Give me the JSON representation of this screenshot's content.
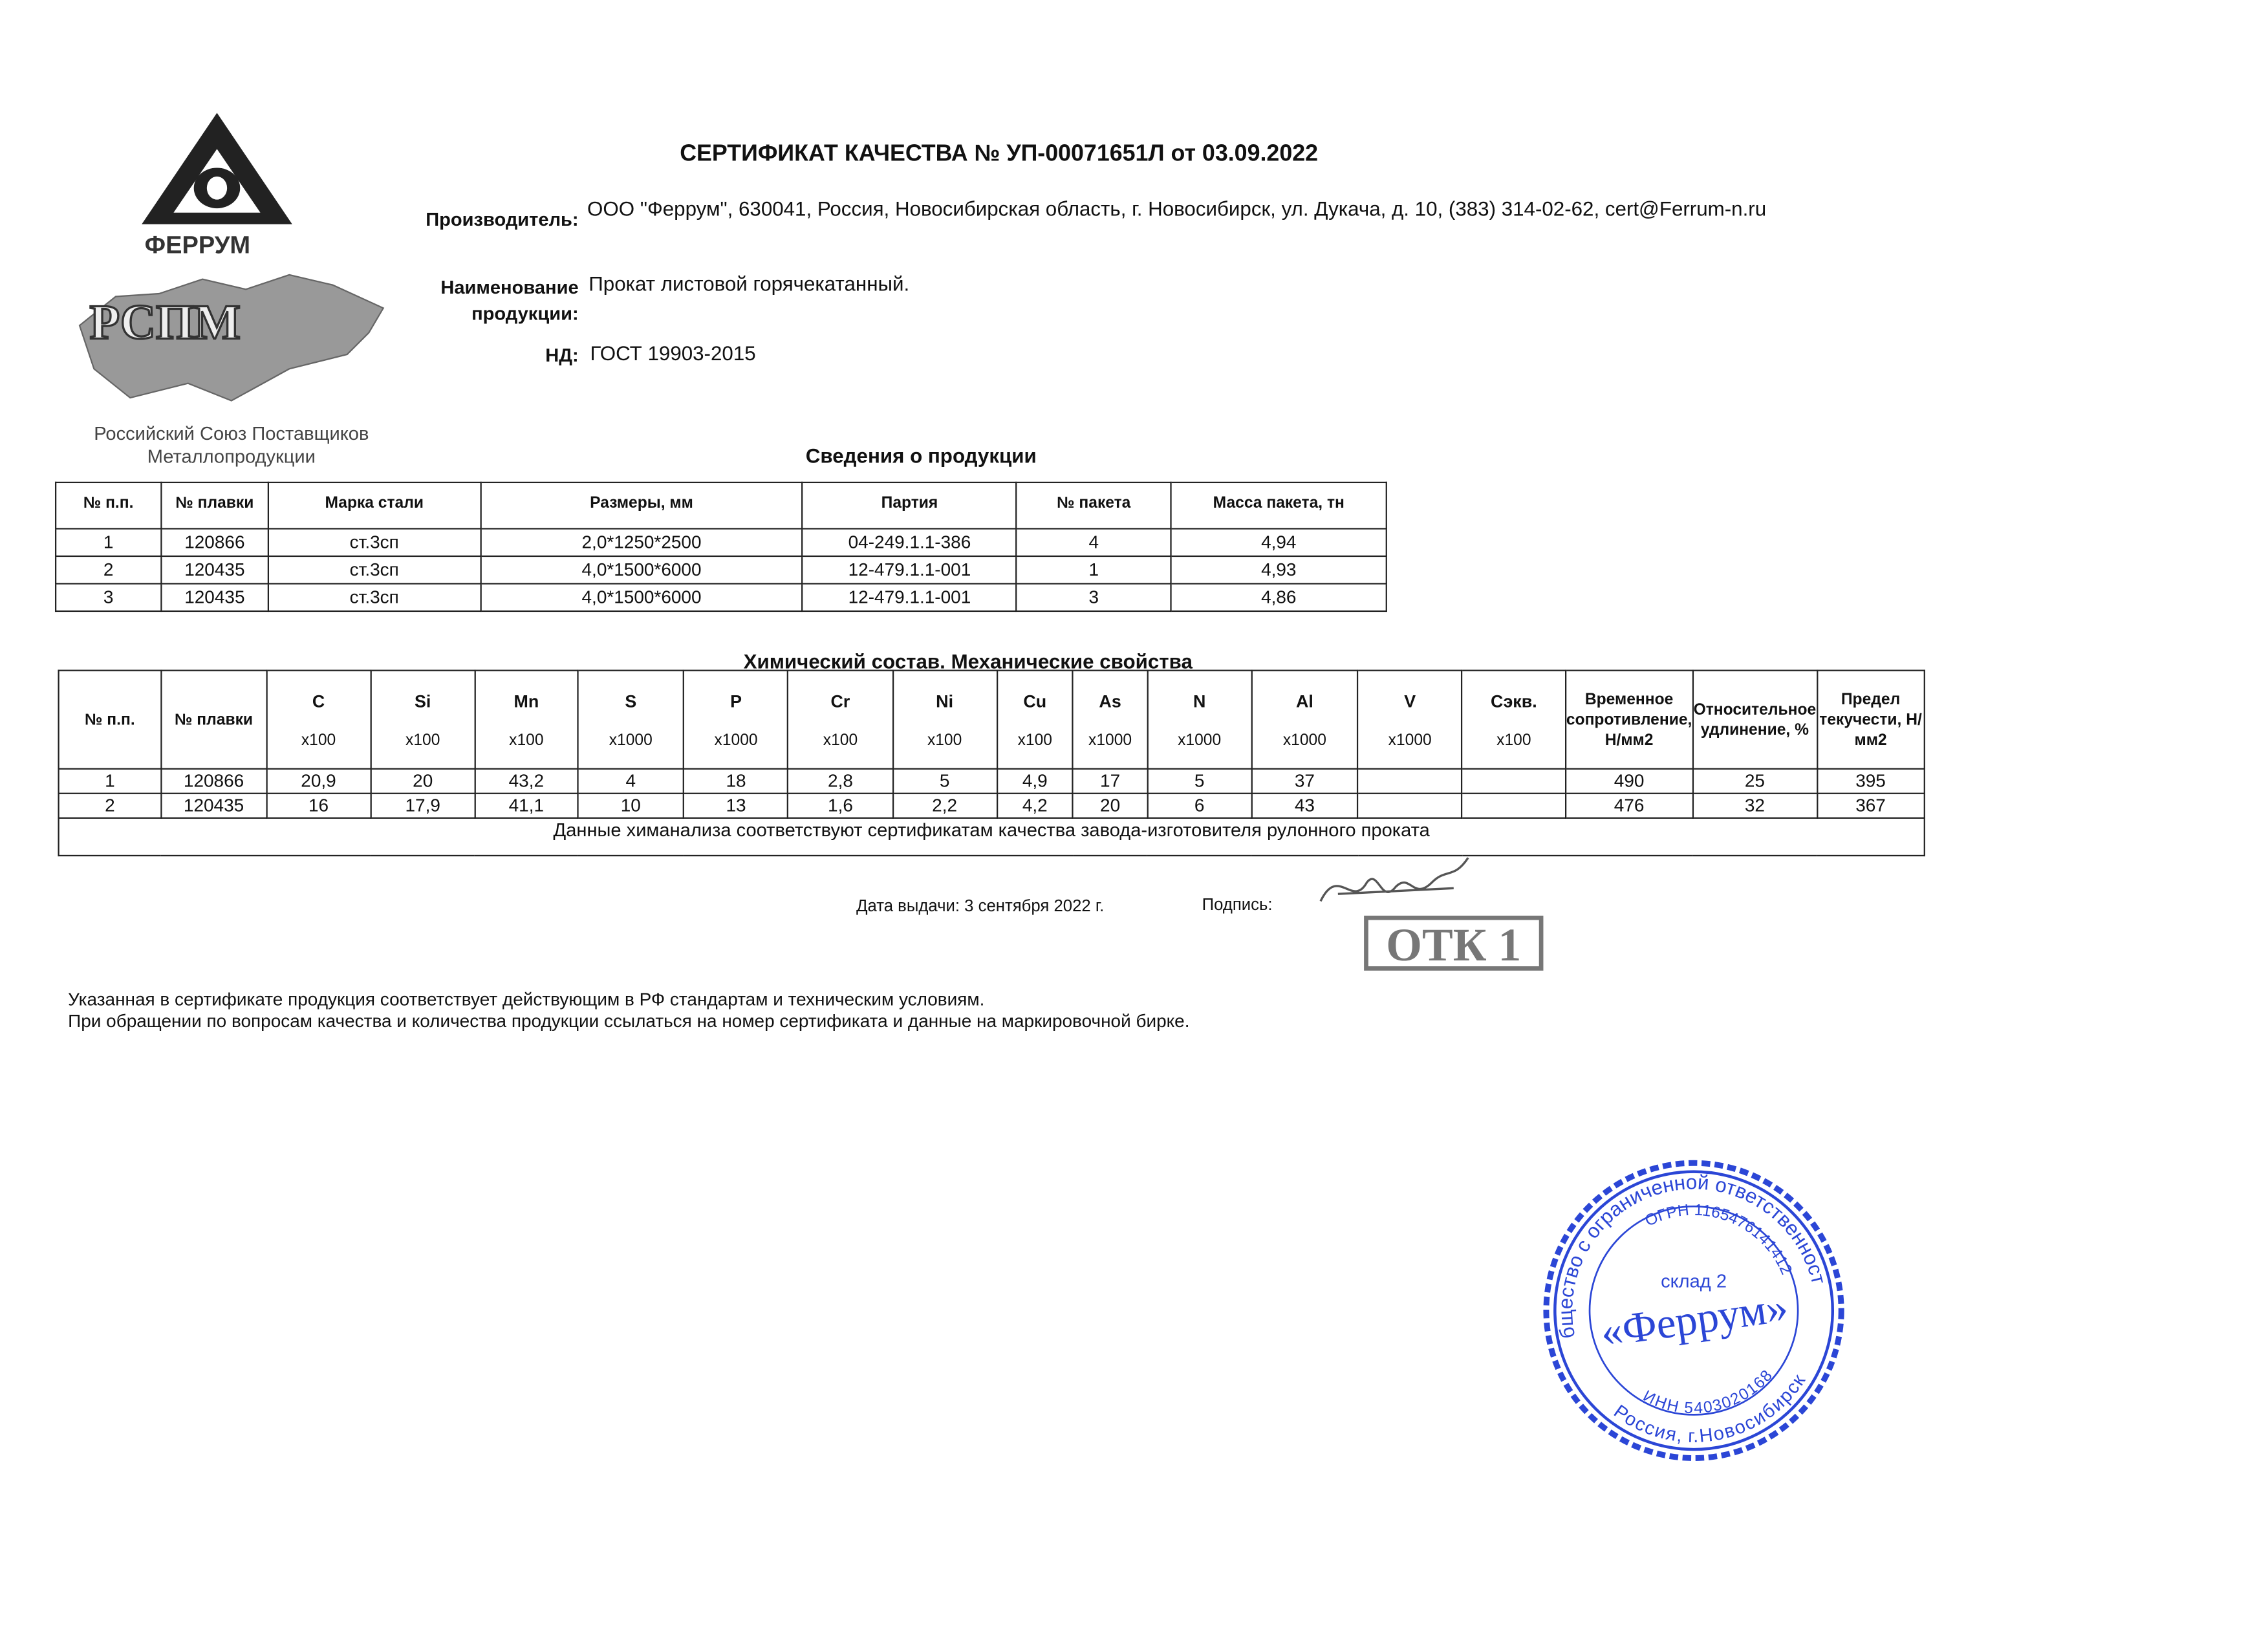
{
  "logo": {
    "brand": "ФЕРРУМ",
    "union_mark": "РСПМ",
    "union_caption_line1": "Российский Союз Поставщиков",
    "union_caption_line2": "Металлопродукции"
  },
  "header": {
    "title": "СЕРТИФИКАТ КАЧЕСТВА № УП-00071651Л от 03.09.2022",
    "manufacturer_label": "Производитель:",
    "manufacturer": "ООО \"Феррум\", 630041, Россия, Новосибирская область, г. Новосибирск, ул. Дукача, д. 10, (383) 314-02-62, cert@Ferrum-n.ru",
    "product_label_1": "Наименование",
    "product_label_2": "продукции:",
    "product": "Прокат листовой горячекатанный.",
    "nd_label": "НД:",
    "nd": "ГОСТ 19903-2015"
  },
  "products": {
    "caption": "Сведения о продукции",
    "columns": [
      "№ п.п.",
      "№ плавки",
      "Марка стали",
      "Размеры, мм",
      "Партия",
      "№ пакета",
      "Масса пакета, тн"
    ],
    "rows": [
      [
        "1",
        "120866",
        "ст.3сп",
        "2,0*1250*2500",
        "04-249.1.1-386",
        "4",
        "4,94"
      ],
      [
        "2",
        "120435",
        "ст.3сп",
        "4,0*1500*6000",
        "12-479.1.1-001",
        "1",
        "4,93"
      ],
      [
        "3",
        "120435",
        "ст.3сп",
        "4,0*1500*6000",
        "12-479.1.1-001",
        "3",
        "4,86"
      ]
    ]
  },
  "chem": {
    "caption": "Химический состав. Механические свойства",
    "columns": [
      {
        "name": "№ п.п.",
        "unit": ""
      },
      {
        "name": "№ плавки",
        "unit": ""
      },
      {
        "name": "C",
        "unit": "x100"
      },
      {
        "name": "Si",
        "unit": "x100"
      },
      {
        "name": "Mn",
        "unit": "x100"
      },
      {
        "name": "S",
        "unit": "x1000"
      },
      {
        "name": "P",
        "unit": "x1000"
      },
      {
        "name": "Cr",
        "unit": "x100"
      },
      {
        "name": "Ni",
        "unit": "x100"
      },
      {
        "name": "Cu",
        "unit": "x100"
      },
      {
        "name": "As",
        "unit": "x1000"
      },
      {
        "name": "N",
        "unit": "x1000"
      },
      {
        "name": "Al",
        "unit": "x1000"
      },
      {
        "name": "V",
        "unit": "x1000"
      },
      {
        "name": "Сэкв.",
        "unit": "x100"
      },
      {
        "name": "Временное сопротивление, Н/мм2",
        "unit": ""
      },
      {
        "name": "Относительное удлинение, %",
        "unit": ""
      },
      {
        "name": "Предел текучести, Н/мм2",
        "unit": ""
      }
    ],
    "rows": [
      [
        "1",
        "120866",
        "20,9",
        "20",
        "43,2",
        "4",
        "18",
        "2,8",
        "5",
        "4,9",
        "17",
        "5",
        "37",
        "",
        "",
        "490",
        "25",
        "395"
      ],
      [
        "2",
        "120435",
        "16",
        "17,9",
        "41,1",
        "10",
        "13",
        "1,6",
        "2,2",
        "4,2",
        "20",
        "6",
        "43",
        "",
        "",
        "476",
        "32",
        "367"
      ]
    ],
    "note": "Данные химанализа соответствуют сертификатам качества завода-изготовителя рулонного проката"
  },
  "issue": {
    "date": "Дата выдачи: 3 сентября 2022 г.",
    "signature_label": "Подпись:",
    "otk_stamp": "ОТК 1"
  },
  "footer": {
    "line1": "Указанная в сертификате продукция соответствует действующим в РФ стандартам и техническим условиям.",
    "line2": "При обращении по вопросам качества и количества продукции ссылаться на номер сертификата и данные на маркировочной бирке."
  },
  "seal": {
    "outer": "Общество с ограниченной ответственностью",
    "ogrn": "ОГРН 1165476141412",
    "center_top": "склад 2",
    "center": "«Феррум»",
    "inn": "ИНН 5403020168",
    "bottom": "Россия, г.Новосибирск",
    "color": "#2b46d6"
  }
}
